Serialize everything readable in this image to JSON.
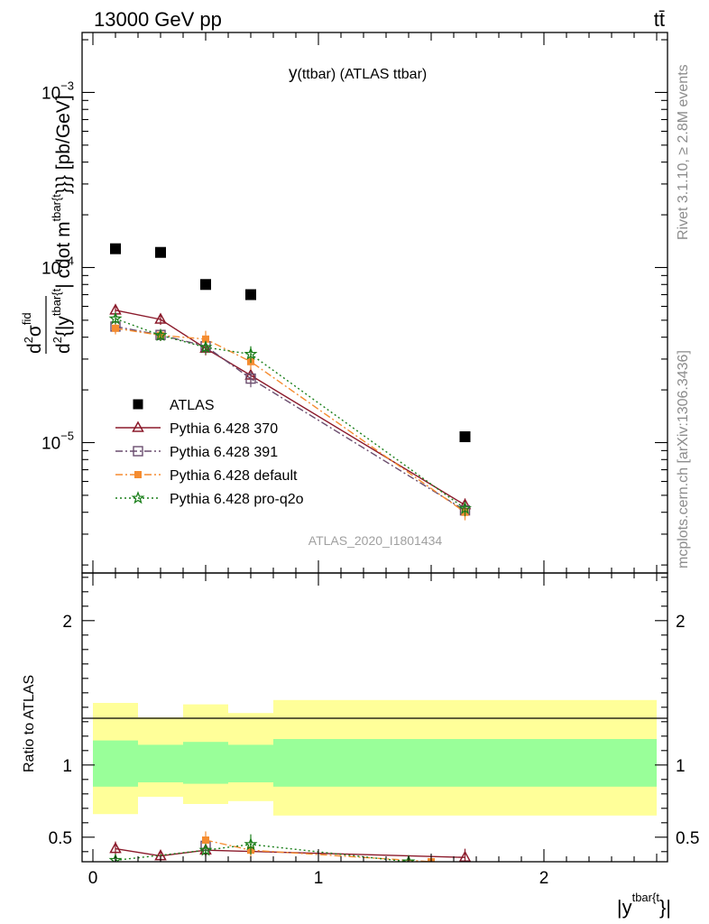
{
  "header": {
    "energy_label": "13000 GeV pp",
    "process_label": "tt̄"
  },
  "side_labels": {
    "rivet": "Rivet 3.1.10, ≥ 2.8M events",
    "mcplots": "mcplots.cern.ch [arXiv:1306.3436]"
  },
  "chart_data": [
    {
      "type": "scatter",
      "panel": "main",
      "title": "y(ttbar) (ATLAS ttbar)",
      "title_main": "y",
      "title_sub": "(ttbar) (ATLAS ttbar)",
      "ylabel": "d²σ^fid / d²{|y^tbar{t}| cdot m^tbar{t}}} [pb/GeV]",
      "ylabel_display": {
        "d1": "d",
        "sup1": "2",
        "sigma": "σ",
        "fid": "fid",
        "d2": "d",
        "sup2": "2",
        "body1": "{|y",
        "sup3": "tbar{t",
        "body2": "| cdot m",
        "sup4": "tbar{t",
        "body3": "}}} [pb/GeV]"
      },
      "yscale": "log",
      "ylim": [
        1.8e-06,
        0.0022
      ],
      "xlim": [
        -0.05,
        2.55
      ],
      "y_ticks": [
        {
          "value": 1e-05,
          "base": "10",
          "exp": "−5"
        },
        {
          "value": 0.0001,
          "base": "10",
          "exp": "−4"
        },
        {
          "value": 0.001,
          "base": "10",
          "exp": "−3"
        }
      ],
      "watermark": "ATLAS_2020_I1801434",
      "legend_position": "lower-left",
      "series": [
        {
          "name": "ATLAS",
          "marker": "square",
          "color": "#000000",
          "style": "none",
          "x": [
            0.1,
            0.3,
            0.5,
            0.7,
            1.65
          ],
          "y": [
            0.000128,
            0.000122,
            8e-05,
            7e-05,
            1.08e-05
          ],
          "err": [
            0,
            0,
            0,
            0,
            0
          ]
        },
        {
          "name": "Pythia 6.428 370",
          "marker": "triangle-open",
          "color": "#8b1a2b",
          "style": "solid",
          "x": [
            0.1,
            0.3,
            0.5,
            0.7,
            1.65
          ],
          "y": [
            5.7e-05,
            5.05e-05,
            3.45e-05,
            2.42e-05,
            4.4e-06
          ],
          "err": [
            4e-06,
            3.5e-06,
            3e-06,
            2.5e-06,
            4e-07
          ]
        },
        {
          "name": "Pythia 6.428 391",
          "marker": "square-open",
          "color": "#6a4d6e",
          "style": "dashdot",
          "x": [
            0.1,
            0.3,
            0.5,
            0.7,
            1.65
          ],
          "y": [
            4.6e-05,
            4.12e-05,
            3.55e-05,
            2.32e-05,
            4.1e-06
          ],
          "err": [
            3.5e-06,
            3e-06,
            3e-06,
            2.5e-06,
            4e-07
          ]
        },
        {
          "name": "Pythia 6.428 default",
          "marker": "square-filled",
          "color": "#f58c30",
          "style": "dashdot",
          "x": [
            0.1,
            0.3,
            0.5,
            0.7,
            1.65
          ],
          "y": [
            4.5e-05,
            4.1e-05,
            3.9e-05,
            2.9e-05,
            4e-06
          ],
          "err": [
            3.5e-06,
            3e-06,
            4.5e-06,
            3e-06,
            4e-07
          ]
        },
        {
          "name": "Pythia 6.428 pro-q2o",
          "marker": "star",
          "color": "#1a7f1a",
          "style": "dotted",
          "x": [
            0.1,
            0.3,
            0.5,
            0.7,
            1.65
          ],
          "y": [
            5.1e-05,
            4.1e-05,
            3.5e-05,
            3.2e-05,
            4.2e-06
          ],
          "err": [
            3.5e-06,
            3e-06,
            3e-06,
            3.5e-06,
            4e-07
          ]
        }
      ]
    },
    {
      "type": "scatter",
      "panel": "ratio",
      "ylabel": "Ratio to ATLAS",
      "xlabel": "|y^{tbar{t}}|",
      "xlabel_display": {
        "body": "|y",
        "sup": "tbar{t",
        "tail": "}|"
      },
      "ylim": [
        0.33,
        2.33
      ],
      "xlim": [
        -0.05,
        2.55
      ],
      "x_ticks": [
        0,
        1,
        2
      ],
      "y_ticks": [
        0.5,
        1,
        2
      ],
      "bands": [
        {
          "x0": 0.0,
          "x1": 0.2,
          "green": [
            0.85,
            1.17
          ],
          "yellow": [
            0.66,
            1.43
          ]
        },
        {
          "x0": 0.2,
          "x1": 0.4,
          "green": [
            0.88,
            1.14
          ],
          "yellow": [
            0.78,
            1.33
          ]
        },
        {
          "x0": 0.4,
          "x1": 0.6,
          "green": [
            0.87,
            1.16
          ],
          "yellow": [
            0.73,
            1.42
          ]
        },
        {
          "x0": 0.6,
          "x1": 0.8,
          "green": [
            0.88,
            1.14
          ],
          "yellow": [
            0.75,
            1.36
          ]
        },
        {
          "x0": 0.8,
          "x1": 2.5,
          "green": [
            0.85,
            1.18
          ],
          "yellow": [
            0.65,
            1.45
          ]
        }
      ],
      "series": [
        {
          "name": "Pythia 6.428 370",
          "color": "#8b1a2b",
          "marker": "triangle-open",
          "style": "solid",
          "x": [
            0.1,
            0.3,
            0.5,
            1.65
          ],
          "y": [
            0.42,
            0.37,
            0.41,
            0.36
          ],
          "err": [
            0.05,
            0.04,
            0.04,
            0.06
          ]
        },
        {
          "name": "Pythia 6.428 391",
          "color": "#6a4d6e",
          "marker": "square-open",
          "style": "dashdot",
          "x": [
            0.5
          ],
          "y": [
            0.44
          ],
          "err": [
            0.04
          ]
        },
        {
          "name": "Pythia 6.428 default",
          "color": "#f58c30",
          "marker": "square-filled",
          "style": "dashdot",
          "x": [
            0.5,
            0.7,
            1.5
          ],
          "y": [
            0.48,
            0.41,
            0.33
          ],
          "err": [
            0.06,
            0.05,
            0.03
          ]
        },
        {
          "name": "Pythia 6.428 pro-q2o",
          "color": "#1a7f1a",
          "marker": "star",
          "style": "dotted",
          "x": [
            0.1,
            0.5,
            0.7,
            1.4
          ],
          "y": [
            0.34,
            0.41,
            0.45,
            0.33
          ],
          "err": [
            0.03,
            0.04,
            0.07,
            0.03
          ]
        }
      ]
    }
  ]
}
